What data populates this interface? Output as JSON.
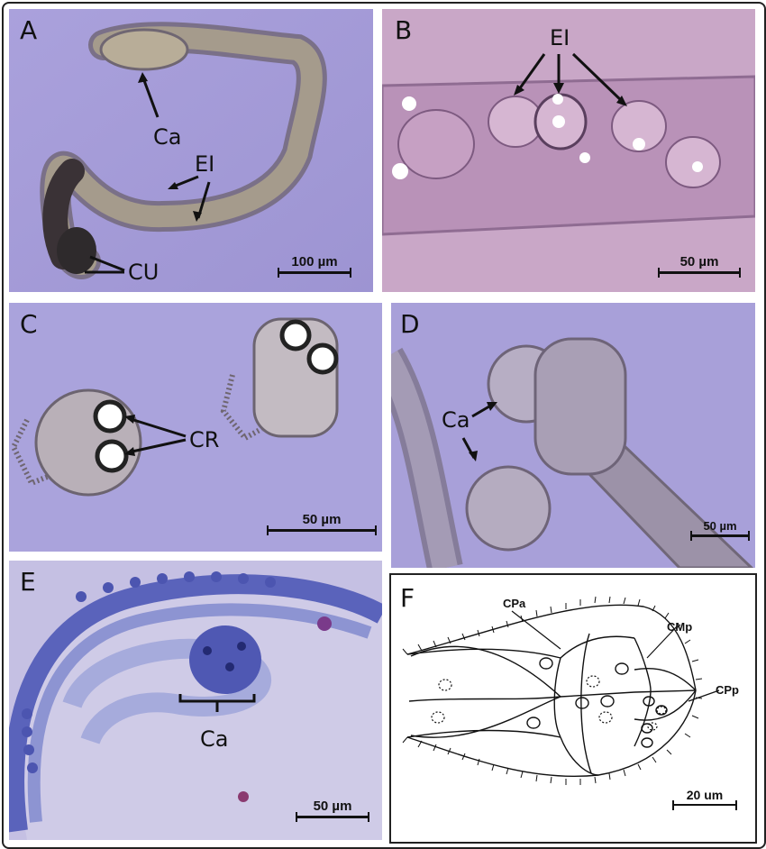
{
  "figure": {
    "panels": {
      "A": {
        "letter": "A",
        "labels": {
          "ca": "Ca",
          "ei": "EI",
          "cu": "CU"
        },
        "scale": "100 µm"
      },
      "B": {
        "letter": "B",
        "labels": {
          "ei": "EI"
        },
        "scale": "50 µm"
      },
      "C": {
        "letter": "C",
        "labels": {
          "cr": "CR"
        },
        "scale": "50 µm"
      },
      "D": {
        "letter": "D",
        "labels": {
          "ca": "Ca"
        },
        "scale": "50 µm"
      },
      "E": {
        "letter": "E",
        "labels": {
          "ca": "Ca"
        },
        "scale": "50 µm"
      },
      "F": {
        "letter": "F",
        "labels": {
          "cpa": "CPa",
          "cmp": "CMp",
          "cpp": "CPp"
        },
        "scale": "20 um"
      }
    },
    "colors": {
      "micro_bg": "#a49bd6",
      "pink_bg": "#c9a6c8",
      "stain_bg": "#c8c4e6",
      "ink": "#111111"
    }
  }
}
